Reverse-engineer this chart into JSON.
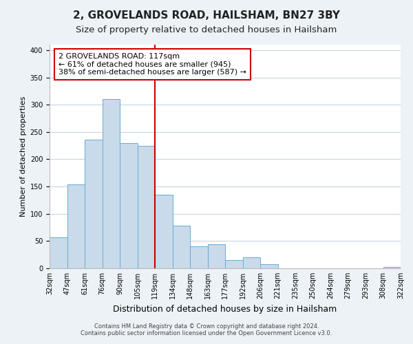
{
  "title": "2, GROVELANDS ROAD, HAILSHAM, BN27 3BY",
  "subtitle": "Size of property relative to detached houses in Hailsham",
  "xlabel": "Distribution of detached houses by size in Hailsham",
  "ylabel": "Number of detached properties",
  "bar_labels": [
    "32sqm",
    "47sqm",
    "61sqm",
    "76sqm",
    "90sqm",
    "105sqm",
    "119sqm",
    "134sqm",
    "148sqm",
    "163sqm",
    "177sqm",
    "192sqm",
    "206sqm",
    "221sqm",
    "235sqm",
    "250sqm",
    "264sqm",
    "279sqm",
    "293sqm",
    "308sqm",
    "322sqm"
  ],
  "bar_values": [
    57,
    154,
    236,
    310,
    229,
    224,
    135,
    78,
    41,
    44,
    15,
    20,
    7,
    0,
    0,
    0,
    0,
    0,
    0,
    3
  ],
  "bar_color": "#c9daea",
  "bar_edge_color": "#6aaad4",
  "ylim": [
    0,
    410
  ],
  "yticks": [
    0,
    50,
    100,
    150,
    200,
    250,
    300,
    350,
    400
  ],
  "marker_color": "#cc0000",
  "marker_bar_index": 6,
  "annotation_title": "2 GROVELANDS ROAD: 117sqm",
  "annotation_line1": "← 61% of detached houses are smaller (945)",
  "annotation_line2": "38% of semi-detached houses are larger (587) →",
  "annotation_box_color": "#ffffff",
  "annotation_box_edge_color": "#cc0000",
  "footer1": "Contains HM Land Registry data © Crown copyright and database right 2024.",
  "footer2": "Contains public sector information licensed under the Open Government Licence v3.0.",
  "background_color": "#edf2f7",
  "plot_background_color": "#ffffff",
  "grid_color": "#c8d4e0",
  "title_fontsize": 11,
  "subtitle_fontsize": 9.5,
  "xlabel_fontsize": 9,
  "ylabel_fontsize": 8,
  "tick_fontsize": 7,
  "annotation_fontsize": 8,
  "footer_fontsize": 6
}
